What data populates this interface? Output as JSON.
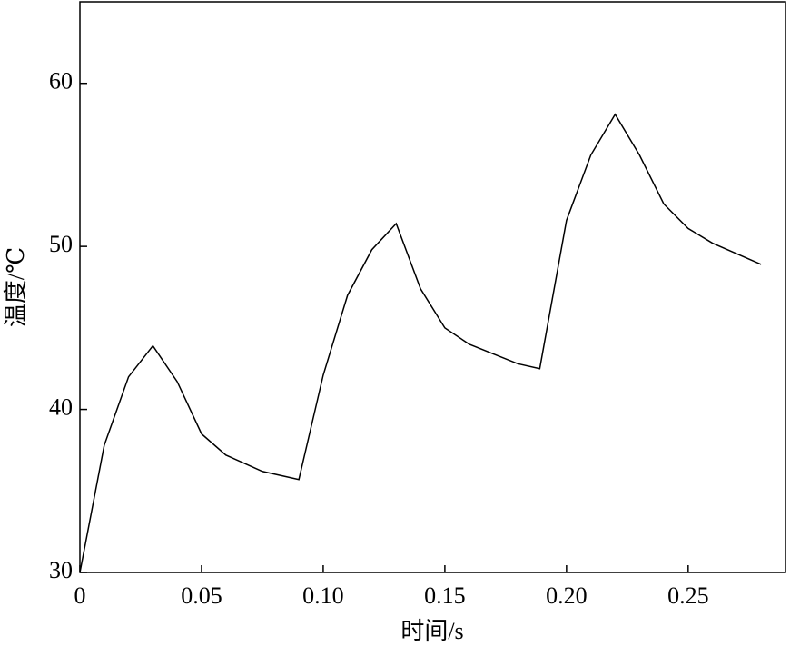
{
  "chart_data": {
    "type": "line",
    "x_label": "时间/s",
    "y_label": "温度/℃",
    "x": [
      0,
      0.01,
      0.02,
      0.03,
      0.04,
      0.05,
      0.06,
      0.075,
      0.09,
      0.1,
      0.11,
      0.12,
      0.13,
      0.14,
      0.15,
      0.16,
      0.17,
      0.18,
      0.189,
      0.2,
      0.21,
      0.22,
      0.23,
      0.24,
      0.25,
      0.26,
      0.28
    ],
    "values": [
      30,
      37.8,
      42.0,
      43.9,
      41.7,
      38.5,
      37.2,
      36.2,
      35.7,
      42.1,
      47.0,
      49.8,
      51.4,
      47.4,
      45.0,
      44.0,
      43.4,
      42.8,
      42.5,
      51.6,
      55.6,
      58.1,
      55.6,
      52.6,
      51.1,
      50.2,
      48.9
    ],
    "color": "#000000",
    "xlim": [
      0,
      0.29
    ],
    "ylim": [
      30,
      65
    ],
    "xticks": [
      0,
      0.05,
      {
        "value": 0.1,
        "label": "0.10"
      },
      0.15,
      {
        "value": 0.2,
        "label": "0.20"
      },
      0.25
    ],
    "yticks": [
      30,
      40,
      50,
      60
    ]
  }
}
